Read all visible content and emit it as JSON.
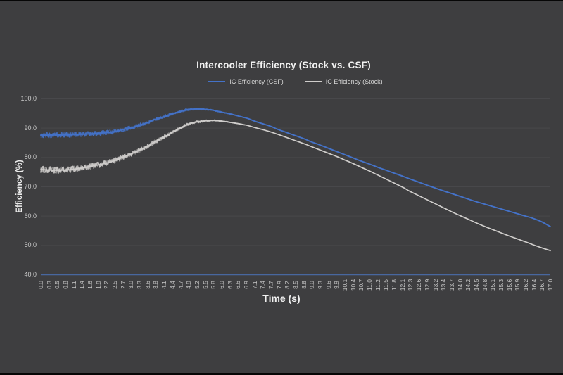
{
  "window": {
    "background_color": "#3e3e40",
    "edge_bar_color": "#060606"
  },
  "chart_data": {
    "type": "line",
    "title": "Intercooler Efficiency (Stock vs. CSF)",
    "xlabel": "Time (s)",
    "ylabel": "Efficiency (%)",
    "xlim": [
      0,
      17
    ],
    "ylim": [
      40,
      100
    ],
    "grid": "horizontal gridlines only, very subtle",
    "legend_position": "top-center",
    "y_ticks": [
      "100.0",
      "90.0",
      "80.0",
      "70.0",
      "60.0",
      "50.0",
      "40.0"
    ],
    "x_ticks": [
      "0.0",
      "0.3",
      "0.5",
      "0.8",
      "1.1",
      "1.4",
      "1.6",
      "1.9",
      "2.2",
      "2.5",
      "2.7",
      "3.0",
      "3.3",
      "3.6",
      "3.8",
      "4.1",
      "4.4",
      "4.7",
      "4.9",
      "5.2",
      "5.5",
      "5.8",
      "6.0",
      "6.3",
      "6.6",
      "6.9",
      "7.1",
      "7.4",
      "7.7",
      "7.9",
      "8.2",
      "8.5",
      "8.8",
      "9.0",
      "9.3",
      "9.6",
      "9.9",
      "10.1",
      "10.4",
      "10.7",
      "11.0",
      "11.2",
      "11.5",
      "11.8",
      "12.1",
      "12.3",
      "12.6",
      "12.9",
      "13.2",
      "13.4",
      "13.7",
      "14.0",
      "14.2",
      "14.5",
      "14.8",
      "15.1",
      "15.3",
      "15.6",
      "15.9",
      "16.2",
      "16.4",
      "16.7",
      "17.0"
    ],
    "x": [
      0.0,
      0.3,
      0.5,
      0.8,
      1.1,
      1.4,
      1.6,
      1.9,
      2.2,
      2.5,
      2.7,
      3.0,
      3.3,
      3.6,
      3.8,
      4.1,
      4.4,
      4.7,
      4.9,
      5.2,
      5.5,
      5.8,
      6.0,
      6.3,
      6.6,
      6.9,
      7.1,
      7.4,
      7.7,
      7.9,
      8.2,
      8.5,
      8.8,
      9.0,
      9.3,
      9.6,
      9.9,
      10.1,
      10.4,
      10.7,
      11.0,
      11.2,
      11.5,
      11.8,
      12.1,
      12.3,
      12.6,
      12.9,
      13.2,
      13.4,
      13.7,
      14.0,
      14.2,
      14.5,
      14.8,
      15.1,
      15.3,
      15.6,
      15.9,
      16.2,
      16.4,
      16.7,
      17.0
    ],
    "series": [
      {
        "name": "IC Efficiency (CSF)",
        "color": "#4472c8",
        "values": [
          87.5,
          87.5,
          87.6,
          87.6,
          87.7,
          87.8,
          87.9,
          88.1,
          88.4,
          88.8,
          89.3,
          90.0,
          90.9,
          91.9,
          92.8,
          93.8,
          94.8,
          95.7,
          96.2,
          96.4,
          96.3,
          95.9,
          95.4,
          94.8,
          94.0,
          93.2,
          92.4,
          91.4,
          90.4,
          89.5,
          88.4,
          87.3,
          86.2,
          85.3,
          84.2,
          83.0,
          81.8,
          81.0,
          79.8,
          78.6,
          77.5,
          76.7,
          75.6,
          74.5,
          73.4,
          72.6,
          71.5,
          70.4,
          69.3,
          68.6,
          67.6,
          66.6,
          65.9,
          64.9,
          64.0,
          63.1,
          62.5,
          61.6,
          60.7,
          59.8,
          59.2,
          58.0,
          56.3
        ],
        "noise_amplitude_pct": 0.9
      },
      {
        "name": "IC Efficiency (Stock)",
        "color": "#cfcdcb",
        "values": [
          75.8,
          75.6,
          75.5,
          75.6,
          75.9,
          76.3,
          76.7,
          77.3,
          78.0,
          78.9,
          79.8,
          81.0,
          82.4,
          83.9,
          85.2,
          86.8,
          88.5,
          90.2,
          91.2,
          92.0,
          92.4,
          92.5,
          92.3,
          91.9,
          91.4,
          90.8,
          90.2,
          89.4,
          88.5,
          87.8,
          86.7,
          85.6,
          84.5,
          83.7,
          82.5,
          81.3,
          80.1,
          79.2,
          77.9,
          76.5,
          75.1,
          74.1,
          72.6,
          71.1,
          69.6,
          68.4,
          66.9,
          65.4,
          63.9,
          62.9,
          61.4,
          60.0,
          59.1,
          57.7,
          56.4,
          55.2,
          54.4,
          53.2,
          52.1,
          51.0,
          50.2,
          49.1,
          48.1
        ],
        "noise_amplitude_pct": 1.1
      }
    ],
    "annotations": "both traces show measurement noise for t < ~6.5 s, smooth afterwards",
    "axis_line_color": "#48679f",
    "gridline_color": "#49494c",
    "tick_label_color": "#c6c6c6"
  }
}
